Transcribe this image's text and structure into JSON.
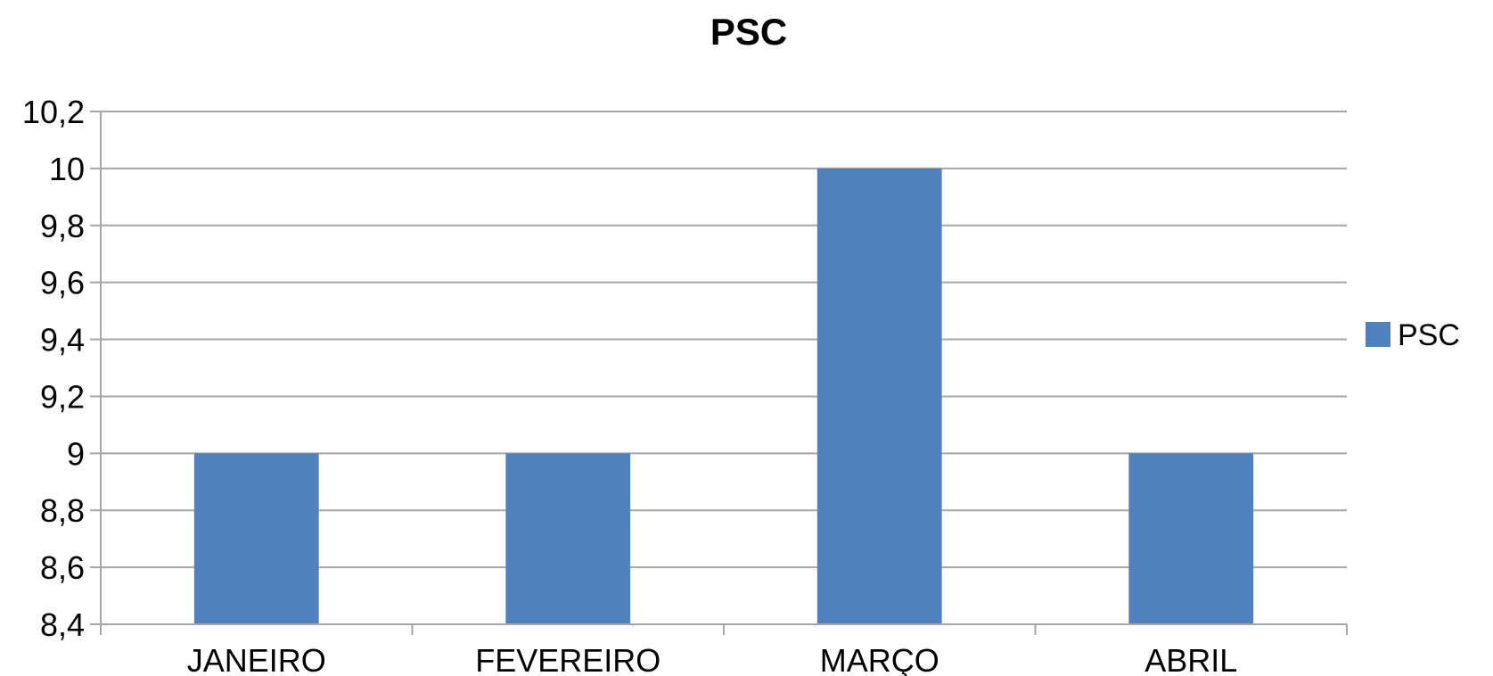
{
  "chart_data": {
    "type": "bar",
    "title": "PSC",
    "xlabel": "",
    "ylabel": "",
    "categories": [
      "JANEIRO",
      "FEVEREIRO",
      "MARÇO",
      "ABRIL"
    ],
    "series": [
      {
        "name": "PSC",
        "values": [
          9,
          9,
          10,
          9
        ],
        "color": "#4f81bd"
      }
    ],
    "ylim": [
      8.4,
      10.2
    ],
    "yticks": [
      "8,4",
      "8,6",
      "8,8",
      "9",
      "9,2",
      "9,4",
      "9,6",
      "9,8",
      "10",
      "10,2"
    ],
    "ytick_values": [
      8.4,
      8.6,
      8.8,
      9.0,
      9.2,
      9.4,
      9.6,
      9.8,
      10.0,
      10.2
    ],
    "grid": true,
    "legend": "right"
  }
}
